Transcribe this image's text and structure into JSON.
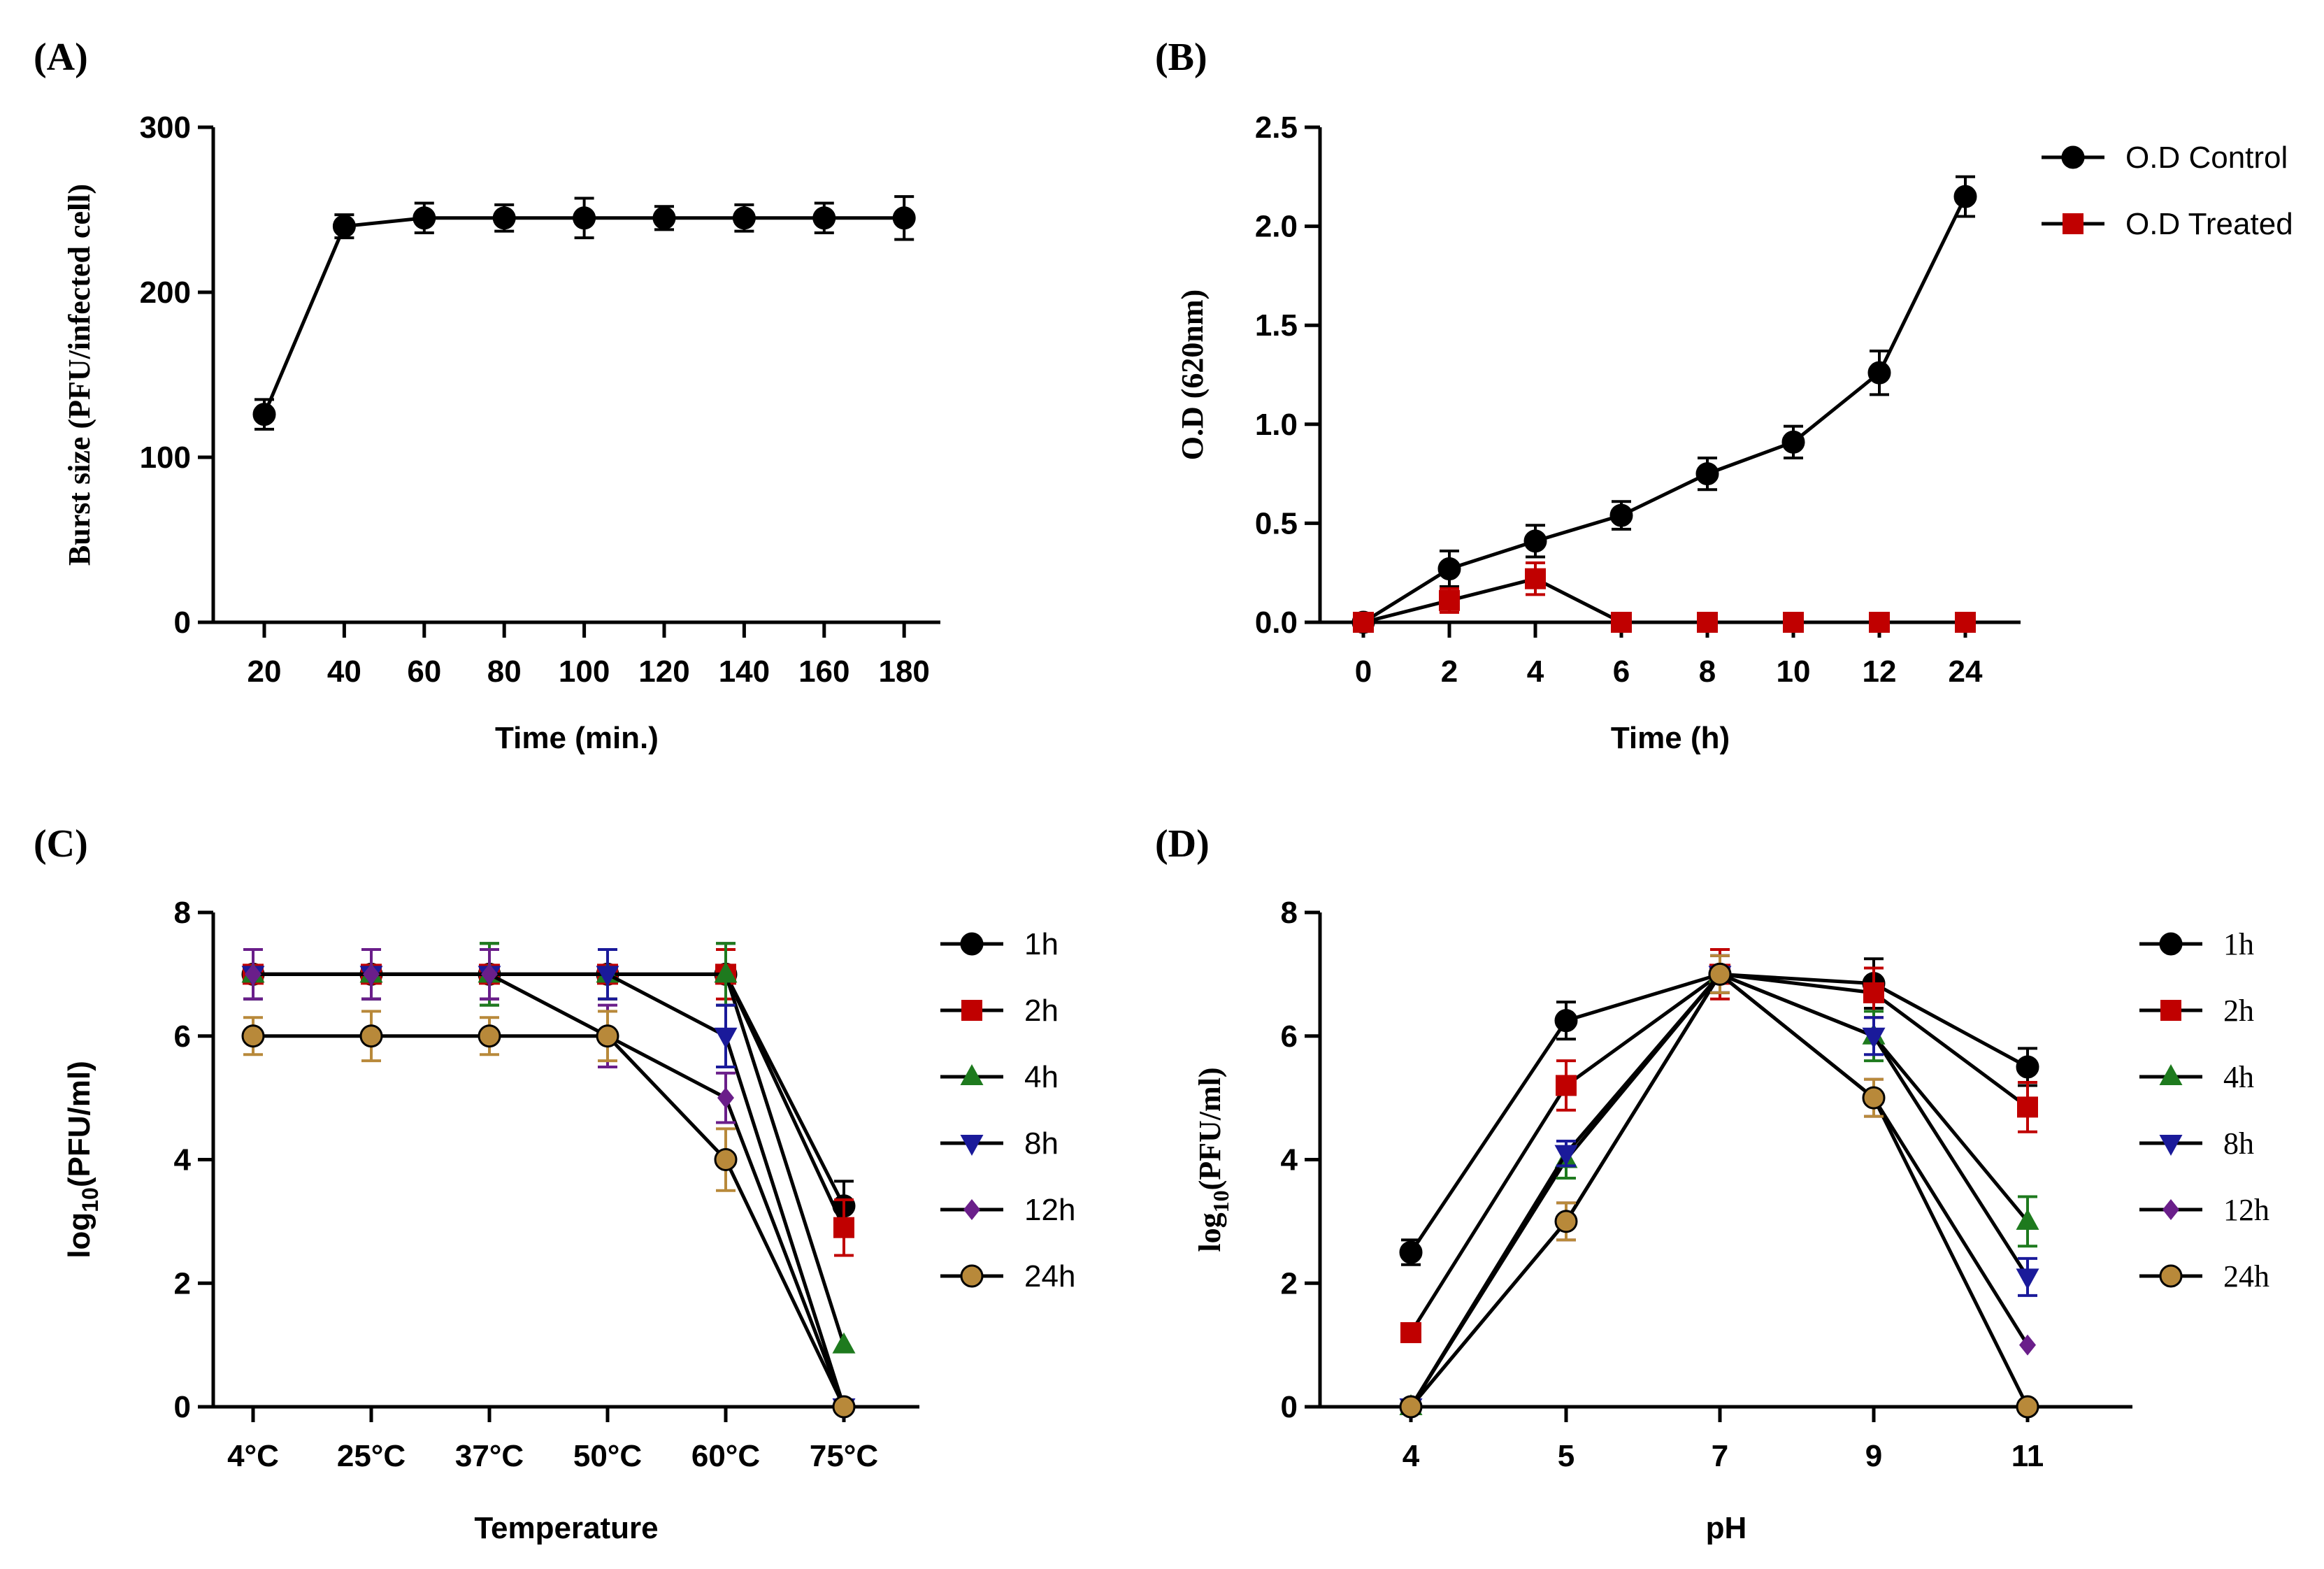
{
  "chart_data": [
    {
      "panel": "(A)",
      "type": "line",
      "title": "",
      "xlabel": "Time (min.)",
      "ylabel": "Burst size  (PFU/infected cell)",
      "ylim": [
        0,
        300
      ],
      "yticks": [
        "0",
        "100",
        "200",
        "300"
      ],
      "categories": [
        "20",
        "40",
        "60",
        "80",
        "100",
        "120",
        "140",
        "160",
        "180"
      ],
      "series": [
        {
          "name": "Burst size",
          "color": "#000000",
          "marker": "circle",
          "values": [
            126,
            240,
            245,
            245,
            245,
            245,
            245,
            245,
            245
          ],
          "errors": [
            9,
            7,
            9,
            8,
            12,
            7,
            8,
            9,
            13
          ]
        }
      ]
    },
    {
      "panel": "(B)",
      "type": "line",
      "title": "",
      "xlabel": "Time (h)",
      "ylabel": "O.D (620nm)",
      "ylim": [
        0,
        2.5
      ],
      "yticks": [
        "0.0",
        "0.5",
        "1.0",
        "1.5",
        "2.0",
        "2.5"
      ],
      "categories": [
        "0",
        "2",
        "4",
        "6",
        "8",
        "10",
        "12",
        "24"
      ],
      "legend_position": "top-right",
      "series": [
        {
          "name": "O.D Control",
          "color": "#000000",
          "marker": "circle",
          "values": [
            0,
            0.27,
            0.41,
            0.54,
            0.75,
            0.91,
            1.26,
            2.15
          ],
          "errors": [
            0,
            0.09,
            0.08,
            0.07,
            0.08,
            0.08,
            0.11,
            0.1
          ]
        },
        {
          "name": "O.D Treated",
          "color": "#c00000",
          "marker": "square",
          "values": [
            0,
            0.11,
            0.22,
            0,
            0,
            0,
            0,
            0
          ],
          "errors": [
            0,
            0.06,
            0.08,
            0,
            0,
            0,
            0,
            0
          ]
        }
      ]
    },
    {
      "panel": "(C)",
      "type": "line",
      "title": "",
      "xlabel": "Temperature",
      "ylabel": "log10(PFU/ml)",
      "ylim": [
        0,
        8
      ],
      "yticks": [
        "0",
        "2",
        "4",
        "6",
        "8"
      ],
      "categories": [
        "4°C",
        "25°C",
        "37°C",
        "50°C",
        "60°C",
        "75°C"
      ],
      "legend_position": "right",
      "series": [
        {
          "name": "1h",
          "color": "#000000",
          "marker": "circle",
          "values": [
            7,
            7,
            7,
            7,
            7,
            3.25
          ],
          "errors": [
            0.4,
            0.4,
            0.5,
            0.4,
            0.5,
            0.4
          ]
        },
        {
          "name": "2h",
          "color": "#c00000",
          "marker": "square",
          "values": [
            7,
            7,
            7,
            7,
            7,
            2.9
          ],
          "errors": [
            0.4,
            0.4,
            0.4,
            0.4,
            0.4,
            0.45
          ]
        },
        {
          "name": "4h",
          "color": "#1e7a1e",
          "marker": "triangle-up",
          "values": [
            7,
            7,
            7,
            7,
            7,
            1.0
          ],
          "errors": [
            0.4,
            0.4,
            0.5,
            0.4,
            0.5,
            0
          ]
        },
        {
          "name": "8h",
          "color": "#1a1a9a",
          "marker": "triangle-down",
          "values": [
            7,
            7,
            7,
            7,
            6,
            0
          ],
          "errors": [
            0.4,
            0.4,
            0.4,
            0.4,
            0.5,
            0
          ]
        },
        {
          "name": "12h",
          "color": "#6a1e8a",
          "marker": "diamond",
          "values": [
            7,
            7,
            7,
            6,
            5,
            0
          ],
          "errors": [
            0.4,
            0.4,
            0.4,
            0.5,
            0.4,
            0
          ]
        },
        {
          "name": "24h",
          "color": "#b8893a",
          "marker": "circle",
          "values": [
            6,
            6,
            6,
            6,
            4,
            0
          ],
          "errors": [
            0.3,
            0.4,
            0.3,
            0.4,
            0.5,
            0
          ]
        }
      ]
    },
    {
      "panel": "(D)",
      "type": "line",
      "title": "",
      "xlabel": "pH",
      "ylabel": "log10(PFU/ml)",
      "ylim": [
        0,
        8
      ],
      "yticks": [
        "0",
        "2",
        "4",
        "6",
        "8"
      ],
      "categories": [
        "4",
        "5",
        "7",
        "9",
        "11"
      ],
      "legend_position": "right",
      "series": [
        {
          "name": "1h",
          "color": "#000000",
          "marker": "circle",
          "values": [
            2.5,
            6.25,
            7,
            6.85,
            5.5
          ],
          "errors": [
            0.2,
            0.3,
            0.3,
            0.4,
            0.3
          ]
        },
        {
          "name": "2h",
          "color": "#c00000",
          "marker": "square",
          "values": [
            1.2,
            5.2,
            7,
            6.7,
            4.85
          ],
          "errors": [
            0.1,
            0.4,
            0.4,
            0.4,
            0.4
          ]
        },
        {
          "name": "4h",
          "color": "#1e7a1e",
          "marker": "triangle-up",
          "values": [
            0,
            4.0,
            7,
            6.0,
            3.0
          ],
          "errors": [
            0,
            0.3,
            0.3,
            0.4,
            0.4
          ]
        },
        {
          "name": "8h",
          "color": "#1a1a9a",
          "marker": "triangle-down",
          "values": [
            0,
            4.1,
            7,
            6.0,
            2.1
          ],
          "errors": [
            0,
            0.2,
            0.3,
            0.3,
            0.3
          ]
        },
        {
          "name": "12h",
          "color": "#6a1e8a",
          "marker": "diamond",
          "values": [
            0,
            3.0,
            7,
            5.0,
            1.0
          ],
          "errors": [
            0,
            0.3,
            0.3,
            0.3,
            0
          ]
        },
        {
          "name": "24h",
          "color": "#b8893a",
          "marker": "circle",
          "values": [
            0,
            3.0,
            7,
            5.0,
            0
          ],
          "errors": [
            0,
            0.3,
            0.3,
            0.3,
            0
          ]
        }
      ]
    }
  ]
}
